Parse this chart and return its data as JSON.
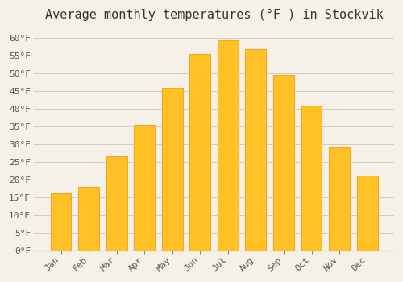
{
  "title": "Average monthly temperatures (°F ) in Stockvik",
  "months": [
    "Jan",
    "Feb",
    "Mar",
    "Apr",
    "May",
    "Jun",
    "Jul",
    "Aug",
    "Sep",
    "Oct",
    "Nov",
    "Dec"
  ],
  "values": [
    16,
    18,
    26.5,
    35.5,
    46,
    55.5,
    59.5,
    57,
    49.5,
    41,
    29,
    21
  ],
  "bar_color": "#FFC125",
  "bar_edge_color": "#F5A623",
  "ylim": [
    0,
    63
  ],
  "yticks": [
    0,
    5,
    10,
    15,
    20,
    25,
    30,
    35,
    40,
    45,
    50,
    55,
    60
  ],
  "background_color": "#f5f0e8",
  "plot_bg_color": "#f5f0e8",
  "grid_color": "#cccccc",
  "title_fontsize": 11,
  "tick_fontsize": 8,
  "font_family": "monospace"
}
